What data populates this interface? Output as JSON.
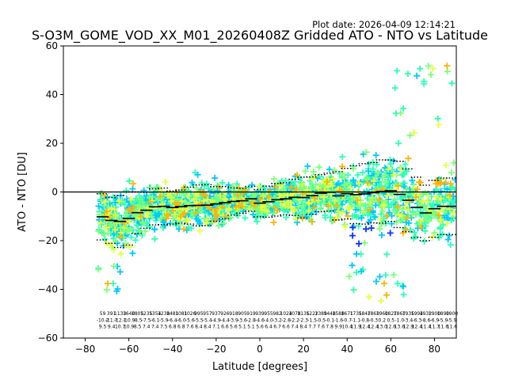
{
  "plot_date": "Plot date: 2026-04-09 12:14:21",
  "chart_data": {
    "type": "scatter",
    "title": "S-O3M_GOME_VOD_XX_M01_20260408Z Gridded ATO - NTO vs Latitude",
    "xlabel": "Latitude [degrees]",
    "ylabel": "ATO - NTO [DU]",
    "xlim": [
      -90,
      90
    ],
    "ylim": [
      -60,
      60
    ],
    "xticks": [
      -80,
      -60,
      -40,
      -20,
      0,
      20,
      40,
      60,
      80
    ],
    "yticks": [
      -60,
      -40,
      -20,
      0,
      20,
      40,
      60
    ],
    "xtick_labels": [
      "−80",
      "−60",
      "−40",
      "−20",
      "0",
      "20",
      "40",
      "60",
      "80"
    ],
    "ytick_labels": [
      "−60",
      "−40",
      "−20",
      "0",
      "20",
      "40",
      "60"
    ],
    "zero_line": 0,
    "colors": {
      "dense": "#2dffb4",
      "mid": "#00c8ff",
      "light": "#7dff7a",
      "yellow": "#e6ff3c",
      "orange": "#ffb400",
      "blue": "#0a32ff",
      "dark_blue": "#0000cc",
      "median": "#000000"
    },
    "bins": {
      "lat": [
        -72,
        -68,
        -64,
        -60,
        -56,
        -52,
        -48,
        -44,
        -40,
        -36,
        -32,
        -28,
        -24,
        -20,
        -16,
        -12,
        -8,
        -4,
        0,
        4,
        8,
        12,
        16,
        20,
        24,
        28,
        32,
        36,
        40,
        44,
        48,
        52,
        56,
        60,
        64,
        68,
        72,
        76,
        80,
        84,
        88
      ],
      "median": [
        -10.2,
        -11.7,
        -12.1,
        -10.9,
        -8.5,
        -7.5,
        -6.1,
        -5.9,
        -6.4,
        -6.0,
        -5.6,
        -5.5,
        -5.4,
        -4.9,
        -4.4,
        -3.9,
        -3.6,
        -2.8,
        -4.6,
        -4.0,
        -3.2,
        -2.8,
        -2.2,
        -2.3,
        -1.5,
        -0.5,
        -0.1,
        -1.6,
        -0.7,
        -1.1,
        -0.8,
        -0.3,
        0.2,
        0.5,
        -1.0,
        -3.4,
        -6.3,
        -8.6,
        -6.9,
        -5.9,
        -5.9
      ],
      "spread": [
        9.5,
        9.4,
        10.7,
        10.9,
        8.5,
        7.4,
        7.4,
        7.5,
        6.8,
        6.8,
        7.6,
        8.4,
        8.4,
        7.1,
        6.6,
        5.6,
        5.1,
        5.1,
        5.6,
        6.4,
        6.7,
        6.6,
        7.4,
        8.4,
        7.7,
        7.6,
        7.8,
        9.9,
        10.4,
        11.9,
        12.4,
        12.4,
        13.0,
        12.6,
        13.6,
        12.9,
        12.4,
        11.4,
        11.7,
        11.6,
        11.6
      ]
    },
    "stats_rows": {
      "counts": [
        "59",
        "391",
        "1133",
        "1640",
        "1805",
        "1235",
        "1354",
        "1238",
        "1481",
        "1081",
        "1026",
        "995",
        "957",
        "937",
        "926",
        "918",
        "905",
        "919",
        "939",
        "955",
        "982",
        "1024",
        "1078",
        "1135",
        "1222",
        "1389",
        "1448",
        "1588",
        "1671",
        "1735",
        "1847",
        "1863",
        "1960",
        "1827",
        "1867",
        "1935",
        "1994",
        "1932",
        "1900",
        "1890",
        "1900"
      ],
      "medians": [
        "-10.2",
        "-11.7",
        "-12.1",
        "-10.9",
        "-8.5",
        "-7.5",
        "-6.1",
        "-5.9",
        "-6.4",
        "-6.0",
        "-5.6",
        "-5.5",
        "-5.4",
        "-4.9",
        "-4.4",
        "-3.9",
        "-3.6",
        "-2.8",
        "-4.6",
        "-4.0",
        "-3.2",
        "-2.8",
        "-2.2",
        "-2.3",
        "-1.5",
        "-0.5",
        "-0.1",
        "-1.6",
        "-0.7",
        "-1.1",
        "-0.8",
        "-0.3",
        "0.2",
        "0.5",
        "-1.0",
        "-3.4",
        "-6.3",
        "-8.6",
        "-6.9",
        "-5.9",
        "-5.9"
      ],
      "spreads": [
        "9.5",
        "9.4",
        "10.7",
        "10.9",
        "8.5",
        "7.4",
        "7.4",
        "7.5",
        "6.8",
        "6.8",
        "7.6",
        "8.4",
        "8.4",
        "7.1",
        "6.6",
        "5.6",
        "5.1",
        "5.1",
        "5.6",
        "6.4",
        "6.7",
        "6.6",
        "7.4",
        "8.4",
        "7.7",
        "7.6",
        "7.8",
        "9.9",
        "10.4",
        "11.9",
        "12.4",
        "12.4",
        "13.0",
        "12.6",
        "13.6",
        "12.9",
        "12.4",
        "11.4",
        "11.7",
        "11.6",
        "11.6"
      ],
      "stats_y": [
        -50.5,
        -53.3,
        -56.0
      ]
    }
  }
}
